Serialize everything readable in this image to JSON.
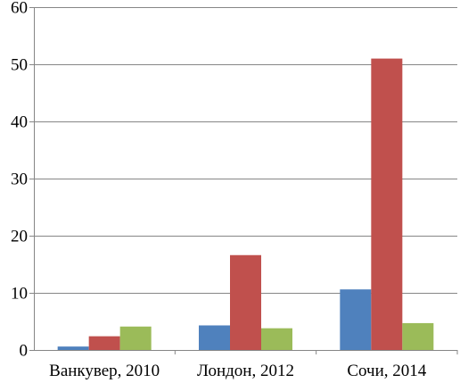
{
  "chart_data": {
    "type": "bar",
    "categories": [
      "Ванкувер, 2010",
      "Лондон, 2012",
      "Сочи, 2014"
    ],
    "series": [
      {
        "values": [
          0.6,
          4.3,
          10.6
        ],
        "color": "#4F81BD"
      },
      {
        "values": [
          2.4,
          16.6,
          51.0
        ],
        "color": "#C0504D"
      },
      {
        "values": [
          4.1,
          3.8,
          4.7
        ],
        "color": "#9BBB59"
      }
    ],
    "ylim": [
      0,
      60
    ],
    "yticks": [
      0,
      10,
      20,
      30,
      40,
      50,
      60
    ],
    "grid": true,
    "title": "",
    "xlabel": "",
    "ylabel": ""
  }
}
